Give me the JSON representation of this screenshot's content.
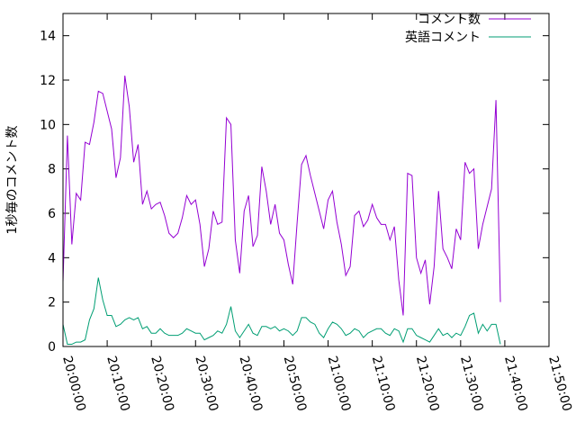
{
  "chart_data": {
    "type": "line",
    "title": "",
    "xlabel": "",
    "ylabel": "1秒毎のコメント数",
    "ylim": [
      0,
      15
    ],
    "yticks": [
      0,
      2,
      4,
      6,
      8,
      10,
      12,
      14
    ],
    "xlim": [
      "20:00:00",
      "21:50:00"
    ],
    "xticks": [
      "20:00:00",
      "20:10:00",
      "20:20:00",
      "20:30:00",
      "20:40:00",
      "20:50:00",
      "21:00:00",
      "21:10:00",
      "21:20:00",
      "21:30:00",
      "21:40:00",
      "21:50:00"
    ],
    "grid": false,
    "legend_position": "top-right",
    "sample_interval": "1 minute",
    "series": [
      {
        "name": "コメント数",
        "color": "#9400d3",
        "x_start": "20:00:00",
        "values": [
          2.9,
          9.5,
          4.6,
          6.9,
          6.6,
          9.2,
          9.1,
          10.1,
          11.5,
          11.4,
          10.6,
          9.8,
          7.6,
          8.5,
          12.2,
          10.8,
          8.3,
          9.1,
          6.4,
          7.0,
          6.2,
          6.4,
          6.5,
          5.9,
          5.1,
          4.9,
          5.1,
          5.8,
          6.8,
          6.4,
          6.6,
          5.5,
          3.6,
          4.4,
          6.1,
          5.5,
          5.6,
          10.3,
          10.0,
          4.8,
          3.3,
          6.1,
          6.8,
          4.5,
          5.0,
          8.1,
          7.0,
          5.5,
          6.4,
          5.1,
          4.8,
          3.7,
          2.8,
          5.6,
          8.2,
          8.6,
          7.7,
          6.9,
          6.1,
          5.3,
          6.6,
          7.0,
          5.6,
          4.6,
          3.2,
          3.6,
          5.9,
          6.1,
          5.4,
          5.7,
          6.4,
          5.8,
          5.5,
          5.5,
          4.8,
          5.4,
          3.0,
          1.4,
          7.8,
          7.7,
          4.0,
          3.3,
          3.9,
          1.9,
          3.6,
          7.0,
          4.4,
          4.0,
          3.5,
          5.3,
          4.8,
          8.3,
          7.8,
          8.0,
          4.4,
          5.5,
          6.3,
          7.1,
          11.1,
          2.0
        ]
      },
      {
        "name": "英語コメント",
        "color": "#009e73",
        "x_start": "20:00:00",
        "values": [
          1.0,
          0.1,
          0.1,
          0.2,
          0.2,
          0.3,
          1.2,
          1.7,
          3.1,
          2.1,
          1.4,
          1.4,
          0.9,
          1.0,
          1.2,
          1.3,
          1.2,
          1.3,
          0.8,
          0.9,
          0.6,
          0.6,
          0.8,
          0.6,
          0.5,
          0.5,
          0.5,
          0.6,
          0.8,
          0.7,
          0.6,
          0.6,
          0.3,
          0.4,
          0.5,
          0.7,
          0.6,
          1.0,
          1.8,
          0.7,
          0.4,
          0.7,
          1.0,
          0.6,
          0.5,
          0.9,
          0.9,
          0.8,
          0.9,
          0.7,
          0.8,
          0.7,
          0.5,
          0.7,
          1.3,
          1.3,
          1.1,
          1.0,
          0.6,
          0.4,
          0.8,
          1.1,
          1.0,
          0.8,
          0.5,
          0.6,
          0.8,
          0.7,
          0.4,
          0.6,
          0.7,
          0.8,
          0.8,
          0.6,
          0.5,
          0.8,
          0.7,
          0.2,
          0.8,
          0.8,
          0.5,
          0.4,
          0.3,
          0.2,
          0.5,
          0.8,
          0.5,
          0.6,
          0.4,
          0.6,
          0.5,
          0.9,
          1.4,
          1.5,
          0.6,
          1.0,
          0.7,
          1.0,
          1.0,
          0.1
        ]
      }
    ]
  }
}
